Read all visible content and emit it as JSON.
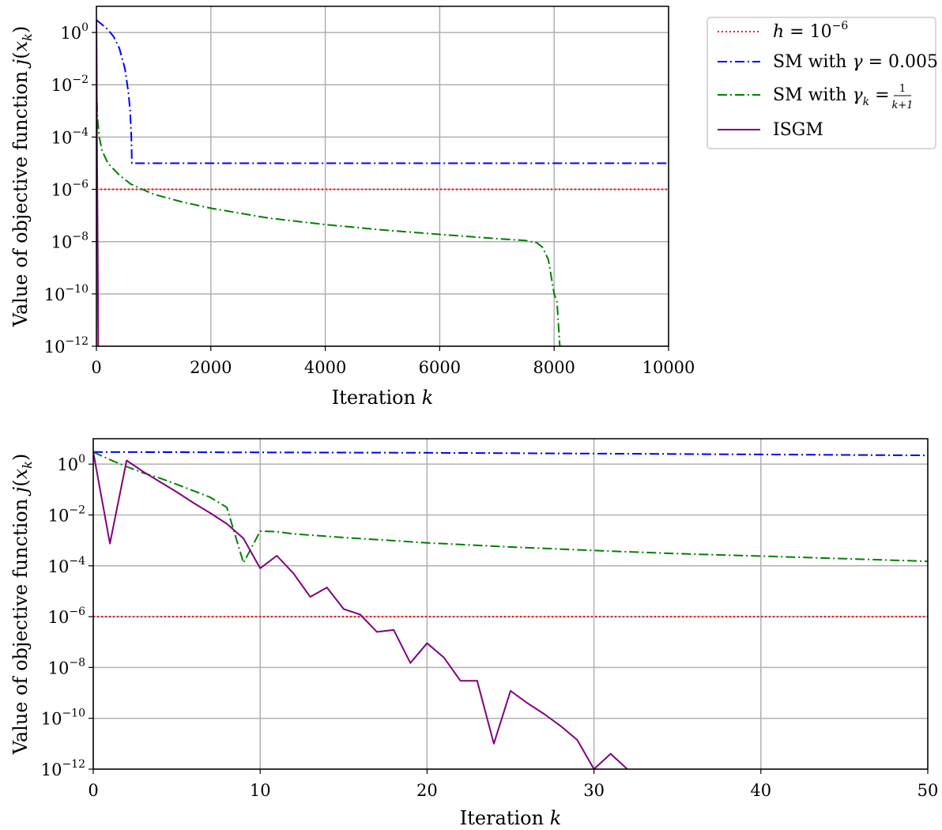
{
  "chart_data": [
    {
      "type": "line",
      "xlabel_prefix": "Iteration ",
      "xlabel_var": "k",
      "ylabel_prefix": "Value of objective function ",
      "ylabel_math": "j(x_k)",
      "xlim": [
        0,
        10000
      ],
      "ylim": [
        1e-12,
        10
      ],
      "yscale": "log",
      "grid": true,
      "legend_position": "outside-right",
      "xticks": [
        "0",
        "2000",
        "4000",
        "6000",
        "8000",
        "10000"
      ],
      "ytick_exponents": [
        "0",
        "-2",
        "-4",
        "-6",
        "-8",
        "-10",
        "-12"
      ],
      "series": [
        {
          "name": "h = 10^-6",
          "color": "#ff0000",
          "dash": "dotted",
          "x": [
            0,
            10000
          ],
          "y": [
            1e-06,
            1e-06
          ]
        },
        {
          "name": "SM with γ = 0.005",
          "color": "#0000ff",
          "dash": "dashdot",
          "x": [
            0,
            100,
            200,
            300,
            400,
            500,
            560,
            590,
            610,
            620,
            640,
            10000
          ],
          "y": [
            3.0,
            2.0,
            1.3,
            0.7,
            0.25,
            0.04,
            0.005,
            0.001,
            0.0001,
            1e-05,
            1e-05,
            1e-05
          ]
        },
        {
          "name": "SM with γk = 1/(k+1)",
          "color": "#008000",
          "dash": "dashdot",
          "x": [
            0,
            20,
            50,
            100,
            200,
            400,
            600,
            800,
            1000,
            1500,
            2000,
            3000,
            4000,
            5000,
            6000,
            7000,
            7500,
            7700,
            7800,
            7900,
            8000,
            8050,
            8100,
            8130
          ],
          "y": [
            0.01,
            0.0005,
            0.0001,
            3e-05,
            1e-05,
            3.5e-06,
            1.6e-06,
            1e-06,
            6.5e-07,
            3.3e-07,
            1.9e-07,
            8e-08,
            4.5e-08,
            2.8e-08,
            1.9e-08,
            1.3e-08,
            1.1e-08,
            9e-09,
            6e-09,
            2e-09,
            1e-10,
            5e-11,
            1e-12,
            1e-12
          ]
        },
        {
          "name": "ISGM",
          "color": "#800080",
          "dash": "solid",
          "x": [
            0,
            2,
            5,
            10,
            15,
            20,
            25,
            28,
            32
          ],
          "y": [
            3.0,
            1.3,
            0.06,
            8e-05,
            2e-06,
            8e-08,
            1e-09,
            6e-11,
            1e-12
          ]
        }
      ]
    },
    {
      "type": "line",
      "xlabel_prefix": "Iteration ",
      "xlabel_var": "k",
      "ylabel_prefix": "Value of objective function ",
      "ylabel_math": "j(x_k)",
      "xlim": [
        0,
        50
      ],
      "ylim": [
        1e-12,
        10
      ],
      "yscale": "log",
      "grid": true,
      "xticks": [
        "0",
        "10",
        "20",
        "30",
        "40",
        "50"
      ],
      "ytick_exponents": [
        "0",
        "-2",
        "-4",
        "-6",
        "-8",
        "-10",
        "-12"
      ],
      "series": [
        {
          "name": "h = 10^-6",
          "color": "#ff0000",
          "dash": "dotted",
          "x": [
            0,
            50
          ],
          "y": [
            1e-06,
            1e-06
          ]
        },
        {
          "name": "SM with γ = 0.005",
          "color": "#0000ff",
          "dash": "dashdot",
          "x": [
            0,
            10,
            20,
            30,
            40,
            50
          ],
          "y": [
            3.0,
            2.9,
            2.8,
            2.6,
            2.4,
            2.2
          ]
        },
        {
          "name": "SM with γk = 1/(k+1)",
          "color": "#008000",
          "dash": "dashdot",
          "x": [
            0,
            1,
            2,
            3,
            4,
            5,
            6,
            7,
            8,
            9,
            10,
            11,
            12,
            15,
            20,
            25,
            30,
            35,
            40,
            45,
            50
          ],
          "y": [
            3.0,
            1.5,
            0.8,
            0.45,
            0.28,
            0.16,
            0.09,
            0.05,
            0.02,
            0.00013,
            0.0023,
            0.0022,
            0.0018,
            0.0013,
            0.0008,
            0.00055,
            0.0004,
            0.0003,
            0.00024,
            0.00019,
            0.00015
          ]
        },
        {
          "name": "ISGM",
          "color": "#800080",
          "dash": "solid",
          "x": [
            0,
            1,
            2,
            3,
            4,
            5,
            6,
            7,
            8,
            9,
            10,
            11,
            12,
            13,
            14,
            15,
            16,
            17,
            18,
            19,
            20,
            21,
            22,
            23,
            24,
            25,
            26,
            27,
            28,
            29,
            30,
            31,
            32
          ],
          "y": [
            3.0,
            0.00075,
            1.4,
            0.5,
            0.2,
            0.08,
            0.03,
            0.012,
            0.0045,
            0.0012,
            8e-05,
            0.00025,
            5e-05,
            6e-06,
            1.4e-05,
            2e-06,
            1.2e-06,
            2.5e-07,
            3e-07,
            1.5e-08,
            9e-08,
            2.5e-08,
            3e-09,
            3e-09,
            1e-11,
            1.2e-09,
            4e-10,
            1.5e-10,
            5e-11,
            1.4e-11,
            1e-12,
            4e-12,
            1e-12
          ]
        }
      ]
    }
  ]
}
